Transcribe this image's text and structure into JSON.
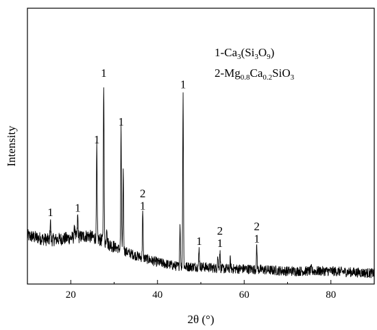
{
  "chart_data": {
    "type": "line",
    "xlabel": "2θ (°)",
    "ylabel": "Intensity",
    "xlim": [
      10,
      90
    ],
    "x_ticks": [
      "20",
      "40",
      "60",
      "80"
    ],
    "y_ticks_shown": false,
    "grid": false,
    "legend": {
      "position": "top-right",
      "entries": [
        {
          "parts": [
            [
              "1-Ca",
              ""
            ],
            [
              "3",
              "sub"
            ],
            [
              "(Si",
              ""
            ],
            [
              "3",
              "sub"
            ],
            [
              "O",
              ""
            ],
            [
              "9",
              "sub"
            ],
            [
              ")",
              ""
            ]
          ]
        },
        {
          "parts": [
            [
              "2-Mg",
              ""
            ],
            [
              "0.8",
              "sub"
            ],
            [
              "Ca",
              ""
            ],
            [
              "0.2",
              "sub"
            ],
            [
              "SiO",
              ""
            ],
            [
              "3",
              "sub"
            ]
          ]
        }
      ]
    },
    "background": [
      [
        10,
        0.2
      ],
      [
        15,
        0.18
      ],
      [
        20,
        0.19
      ],
      [
        24,
        0.2
      ],
      [
        27,
        0.18
      ],
      [
        30,
        0.15
      ],
      [
        35,
        0.11
      ],
      [
        40,
        0.08
      ],
      [
        45,
        0.06
      ],
      [
        50,
        0.06
      ],
      [
        55,
        0.05
      ],
      [
        60,
        0.05
      ],
      [
        70,
        0.04
      ],
      [
        80,
        0.04
      ],
      [
        90,
        0.03
      ]
    ],
    "peaks": [
      {
        "x": 15.3,
        "y": 0.27,
        "labels": [
          "1"
        ]
      },
      {
        "x": 20.9,
        "y": 0.25,
        "labels": []
      },
      {
        "x": 21.6,
        "y": 0.29,
        "labels": [
          "1"
        ]
      },
      {
        "x": 26.0,
        "y": 0.6,
        "labels": [
          "1"
        ]
      },
      {
        "x": 27.6,
        "y": 0.9,
        "labels": [
          "1"
        ]
      },
      {
        "x": 28.3,
        "y": 0.25,
        "labels": []
      },
      {
        "x": 31.6,
        "y": 0.68,
        "labels": [
          "1"
        ]
      },
      {
        "x": 32.1,
        "y": 0.5,
        "labels": []
      },
      {
        "x": 36.6,
        "y": 0.3,
        "labels": [
          "2",
          "1"
        ]
      },
      {
        "x": 45.2,
        "y": 0.25,
        "labels": []
      },
      {
        "x": 45.9,
        "y": 0.85,
        "labels": [
          "1"
        ]
      },
      {
        "x": 49.6,
        "y": 0.14,
        "labels": [
          "1"
        ]
      },
      {
        "x": 53.9,
        "y": 0.11,
        "labels": []
      },
      {
        "x": 54.4,
        "y": 0.13,
        "labels": [
          "2",
          "1"
        ]
      },
      {
        "x": 56.8,
        "y": 0.09,
        "labels": []
      },
      {
        "x": 62.9,
        "y": 0.15,
        "labels": [
          "2",
          "1"
        ]
      },
      {
        "x": 75.5,
        "y": 0.05,
        "labels": []
      }
    ]
  }
}
